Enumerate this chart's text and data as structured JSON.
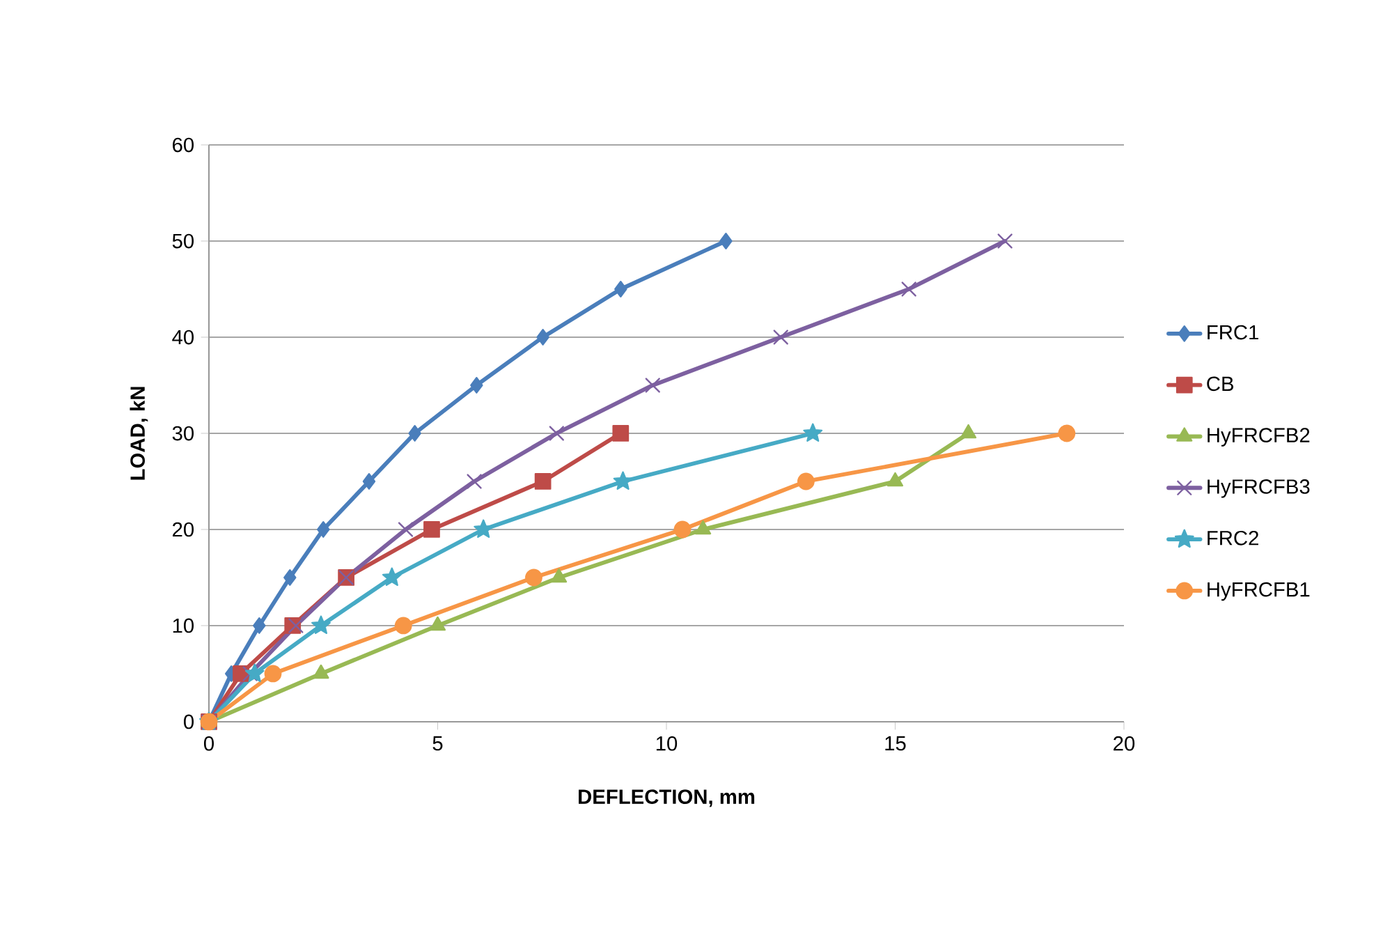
{
  "chart_data": {
    "type": "line",
    "xlabel": "DEFLECTION, mm",
    "ylabel": "LOAD, kN",
    "xlim": [
      0,
      20
    ],
    "xticks": [
      0,
      5,
      10,
      15,
      20
    ],
    "ylim": [
      0,
      60
    ],
    "yticks": [
      0,
      10,
      20,
      30,
      40,
      50,
      60
    ],
    "grid": "y",
    "legend": "right",
    "line_style": "solid",
    "series": [
      {
        "name": "FRC1",
        "color": "#4a7ebb",
        "marker": "diamond",
        "x": [
          0,
          0.49,
          1.1,
          1.77,
          2.5,
          3.5,
          4.5,
          5.85,
          7.3,
          9.0,
          11.3
        ],
        "values": [
          0,
          5,
          10,
          15,
          20,
          25,
          30,
          35,
          40,
          45,
          50
        ]
      },
      {
        "name": "CB",
        "color": "#be4b48",
        "marker": "square",
        "x": [
          0,
          0.7,
          1.83,
          3.0,
          4.87,
          7.3,
          9.0
        ],
        "values": [
          0,
          5,
          10,
          15,
          20,
          25,
          30
        ]
      },
      {
        "name": "HyFRCFB2",
        "color": "#98b954",
        "marker": "triangle",
        "x": [
          0,
          2.45,
          5.0,
          7.65,
          10.8,
          15.0,
          16.6
        ],
        "values": [
          0,
          5,
          10,
          15,
          20,
          25,
          30
        ]
      },
      {
        "name": "HyFRCFB3",
        "color": "#7d60a0",
        "marker": "cross",
        "x": [
          0,
          0.9,
          1.9,
          3.0,
          4.3,
          5.8,
          7.6,
          9.7,
          12.5,
          15.3,
          17.4
        ],
        "values": [
          0,
          5,
          10,
          15,
          20,
          25,
          30,
          35,
          40,
          45,
          50
        ]
      },
      {
        "name": "FRC2",
        "color": "#46aac5",
        "marker": "star",
        "x": [
          0,
          1.0,
          2.45,
          4.0,
          6.0,
          9.05,
          13.2
        ],
        "values": [
          0,
          5,
          10,
          15,
          20,
          25,
          30
        ]
      },
      {
        "name": "HyFRCFB1",
        "color": "#f79646",
        "marker": "circle",
        "x": [
          0,
          1.4,
          4.25,
          7.1,
          10.35,
          13.05,
          18.75
        ],
        "values": [
          0,
          5,
          10,
          15,
          20,
          25,
          30
        ]
      }
    ]
  }
}
